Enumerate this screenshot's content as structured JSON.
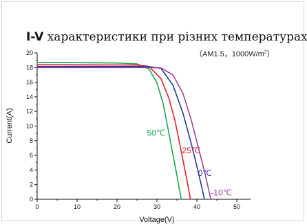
{
  "chart_data": {
    "type": "line",
    "title_prefix": "I-V",
    "title": "характеристики при різних температурах",
    "subtitle": "（AM1.5，1000W/m",
    "subtitle_sup": "2",
    "subtitle_end": "）",
    "xlabel": "Voltage(V)",
    "ylabel": "Current(A)",
    "xlim": [
      0,
      60
    ],
    "ylim": [
      0,
      20
    ],
    "xticks": [
      0,
      10,
      20,
      30,
      40,
      50
    ],
    "yticks": [
      0,
      2,
      4,
      6,
      8,
      10,
      12,
      14,
      16,
      18,
      20
    ],
    "grid": false,
    "legend": "none",
    "series": [
      {
        "name": "50℃",
        "color": "#1aa64b",
        "x": [
          0,
          10,
          20,
          25,
          28,
          30,
          31.5,
          33,
          34,
          35,
          35.5,
          36.1
        ],
        "y": [
          18.7,
          18.67,
          18.62,
          18.5,
          17.8,
          15.9,
          13.2,
          9.0,
          6.1,
          3.3,
          1.7,
          0
        ]
      },
      {
        "name": "25℃",
        "color": "#e0202a",
        "x": [
          0,
          10,
          20,
          25,
          28,
          31,
          33,
          34.5,
          36,
          37,
          37.8,
          38.4
        ],
        "y": [
          18.4,
          18.38,
          18.36,
          18.35,
          18.15,
          16.5,
          13.8,
          10.8,
          6.8,
          4.0,
          1.8,
          0
        ]
      },
      {
        "name": "0℃",
        "color": "#1f3a9c",
        "x": [
          0,
          10,
          20,
          25,
          28,
          31,
          34,
          36.5,
          38.5,
          40,
          41,
          41.9
        ],
        "y": [
          18.15,
          18.15,
          18.15,
          18.15,
          18.13,
          17.9,
          15.6,
          11.8,
          7.8,
          4.5,
          2.2,
          0
        ]
      },
      {
        "name": "-10℃",
        "color": "#a0409a",
        "x": [
          0,
          10,
          20,
          25,
          28,
          31,
          34,
          36.5,
          38.5,
          40.5,
          42,
          43.5
        ],
        "y": [
          18.0,
          18.0,
          18.0,
          18.0,
          18.0,
          17.95,
          17.0,
          14.5,
          11.0,
          6.8,
          3.6,
          0
        ]
      }
    ],
    "annotations": [
      {
        "text": "50℃",
        "color": "#1aa64b",
        "x": 27.5,
        "y": 8.7
      },
      {
        "text": "25℃",
        "color": "#e0202a",
        "x": 36.3,
        "y": 6.3
      },
      {
        "text": "0℃",
        "color": "#1f3a9c",
        "x": 40.3,
        "y": 3.2
      },
      {
        "text": "-10℃",
        "color": "#a0409a",
        "x": 43.5,
        "y": 0.5
      }
    ]
  }
}
